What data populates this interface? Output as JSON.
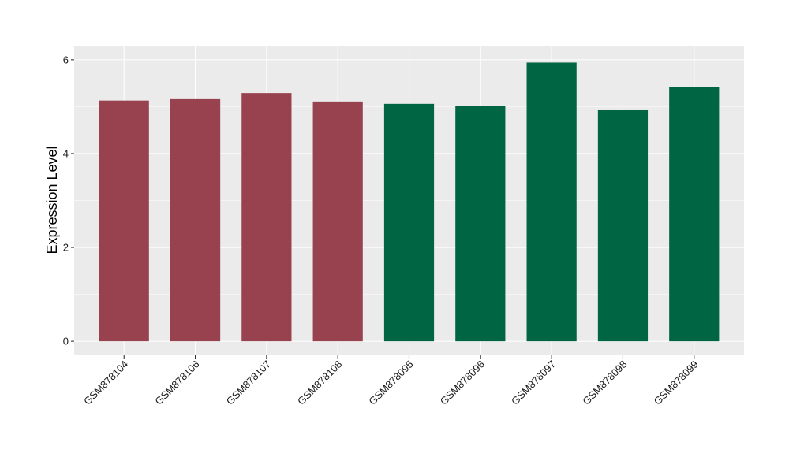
{
  "chart_data": {
    "type": "bar",
    "title": "",
    "xlabel": "",
    "ylabel": "Expression Level",
    "categories": [
      "GSM878104",
      "GSM878106",
      "GSM878107",
      "GSM878108",
      "GSM878095",
      "GSM878096",
      "GSM878097",
      "GSM878098",
      "GSM878099"
    ],
    "values": [
      5.13,
      5.16,
      5.29,
      5.11,
      5.06,
      5.01,
      5.94,
      4.93,
      5.42
    ],
    "bar_colors": [
      "#99424f",
      "#99424f",
      "#99424f",
      "#99424f",
      "#006543",
      "#006543",
      "#006543",
      "#006543",
      "#006543"
    ],
    "y_ticks": [
      0,
      2,
      4,
      6
    ],
    "y_tick_labels": [
      "0",
      "2",
      "4",
      "6"
    ],
    "ylim": [
      -0.3,
      6.3
    ],
    "grid": true,
    "legend": "none"
  }
}
